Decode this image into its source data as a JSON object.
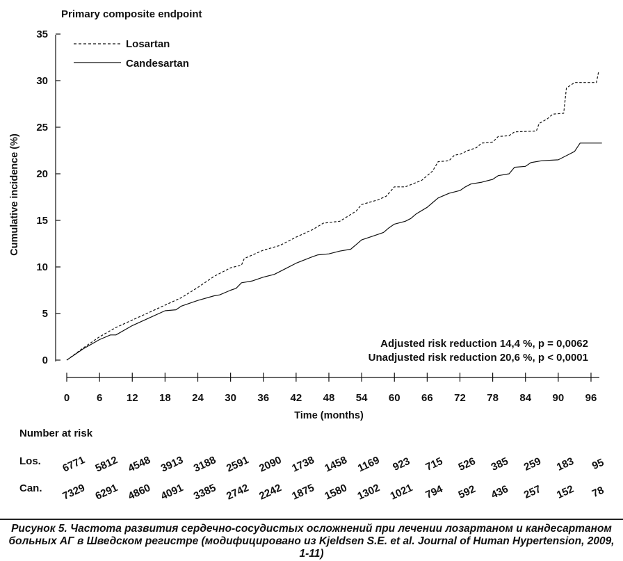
{
  "chart_data": {
    "type": "line",
    "title": "Primary composite endpoint",
    "xlabel": "Time (months)",
    "ylabel": "Cumulative incidence (%)",
    "xlim": [
      0,
      98
    ],
    "ylim": [
      0,
      35
    ],
    "xticks": [
      "0",
      "6",
      "12",
      "18",
      "24",
      "30",
      "36",
      "42",
      "48",
      "54",
      "60",
      "66",
      "72",
      "78",
      "84",
      "90",
      "96"
    ],
    "yticks": [
      "0",
      "5",
      "10",
      "15",
      "20",
      "25",
      "30",
      "35"
    ],
    "grid": false,
    "legend_position": "top-left",
    "series": [
      {
        "name": "Losartan",
        "style": "dashed",
        "points": [
          [
            0,
            0
          ],
          [
            3,
            1.3
          ],
          [
            6,
            2.5
          ],
          [
            9,
            3.5
          ],
          [
            12,
            4.3
          ],
          [
            15,
            5.1
          ],
          [
            18,
            5.9
          ],
          [
            21,
            6.7
          ],
          [
            24,
            7.8
          ],
          [
            27,
            9
          ],
          [
            30,
            9.9
          ],
          [
            32,
            10.2
          ],
          [
            32.5,
            10.9
          ],
          [
            36,
            11.8
          ],
          [
            39,
            12.3
          ],
          [
            42,
            13.2
          ],
          [
            45,
            14
          ],
          [
            47,
            14.7
          ],
          [
            50,
            14.9
          ],
          [
            53,
            16
          ],
          [
            54,
            16.7
          ],
          [
            57,
            17.2
          ],
          [
            58.5,
            17.6
          ],
          [
            60,
            18.6
          ],
          [
            62,
            18.6
          ],
          [
            65,
            19.3
          ],
          [
            67,
            20.3
          ],
          [
            68,
            21.3
          ],
          [
            70,
            21.4
          ],
          [
            71,
            22
          ],
          [
            72,
            22.1
          ],
          [
            73.5,
            22.5
          ],
          [
            75,
            22.8
          ],
          [
            76,
            23.3
          ],
          [
            78,
            23.4
          ],
          [
            79,
            24
          ],
          [
            81,
            24.1
          ],
          [
            82,
            24.5
          ],
          [
            86,
            24.6
          ],
          [
            86.5,
            25.4
          ],
          [
            88,
            25.9
          ],
          [
            89,
            26.4
          ],
          [
            91,
            26.5
          ],
          [
            91.5,
            29.2
          ],
          [
            93,
            29.8
          ],
          [
            97,
            29.8
          ],
          [
            97.4,
            31
          ]
        ]
      },
      {
        "name": "Candesartan",
        "style": "solid",
        "points": [
          [
            0,
            0
          ],
          [
            3,
            1.2
          ],
          [
            6,
            2.2
          ],
          [
            8,
            2.7
          ],
          [
            9,
            2.7
          ],
          [
            12,
            3.7
          ],
          [
            15,
            4.5
          ],
          [
            18,
            5.3
          ],
          [
            20,
            5.4
          ],
          [
            21,
            5.8
          ],
          [
            24,
            6.4
          ],
          [
            27,
            6.9
          ],
          [
            28,
            7
          ],
          [
            30,
            7.5
          ],
          [
            31,
            7.7
          ],
          [
            32,
            8.3
          ],
          [
            34,
            8.5
          ],
          [
            36,
            8.9
          ],
          [
            38,
            9.2
          ],
          [
            40,
            9.8
          ],
          [
            42,
            10.4
          ],
          [
            45,
            11.1
          ],
          [
            46,
            11.3
          ],
          [
            48,
            11.4
          ],
          [
            50,
            11.7
          ],
          [
            52,
            11.9
          ],
          [
            53,
            12.4
          ],
          [
            54,
            12.9
          ],
          [
            56,
            13.3
          ],
          [
            58,
            13.7
          ],
          [
            59,
            14.2
          ],
          [
            60,
            14.6
          ],
          [
            62,
            14.9
          ],
          [
            63,
            15.2
          ],
          [
            64,
            15.7
          ],
          [
            66,
            16.4
          ],
          [
            67,
            16.9
          ],
          [
            68,
            17.4
          ],
          [
            70,
            17.9
          ],
          [
            72,
            18.2
          ],
          [
            73,
            18.6
          ],
          [
            74,
            18.9
          ],
          [
            76,
            19.1
          ],
          [
            78,
            19.4
          ],
          [
            79,
            19.8
          ],
          [
            81,
            20
          ],
          [
            82,
            20.7
          ],
          [
            84,
            20.8
          ],
          [
            85,
            21.2
          ],
          [
            87,
            21.4
          ],
          [
            90,
            21.5
          ],
          [
            91,
            21.8
          ],
          [
            92,
            22.1
          ],
          [
            93,
            22.4
          ],
          [
            94,
            23.3
          ],
          [
            98,
            23.3
          ]
        ]
      }
    ],
    "annotations": [
      "Adjusted risk reduction 14,4 %, p = 0,0062",
      "Unadjusted risk reduction 20,6 %, p < 0,0001"
    ],
    "number_at_risk": {
      "title": "Number at risk",
      "rows": [
        {
          "label": "Los.",
          "values": [
            "6771",
            "5812",
            "4548",
            "3913",
            "3188",
            "2591",
            "2090",
            "1738",
            "1458",
            "1169",
            "923",
            "715",
            "526",
            "385",
            "259",
            "183",
            "95"
          ]
        },
        {
          "label": "Can.",
          "values": [
            "7329",
            "6291",
            "4860",
            "4091",
            "3385",
            "2742",
            "2242",
            "1875",
            "1580",
            "1302",
            "1021",
            "794",
            "592",
            "436",
            "257",
            "152",
            "78"
          ]
        }
      ]
    }
  },
  "caption": "Рисунок 5. Частота развития сердечно-сосудистых осложнений при лечении лозартаном и кандесартаном больных АГ в Шведском регистре (модифицировано из Kjeldsen S.E. et al. Journal of Human Hypertension, 2009, 1-11)"
}
